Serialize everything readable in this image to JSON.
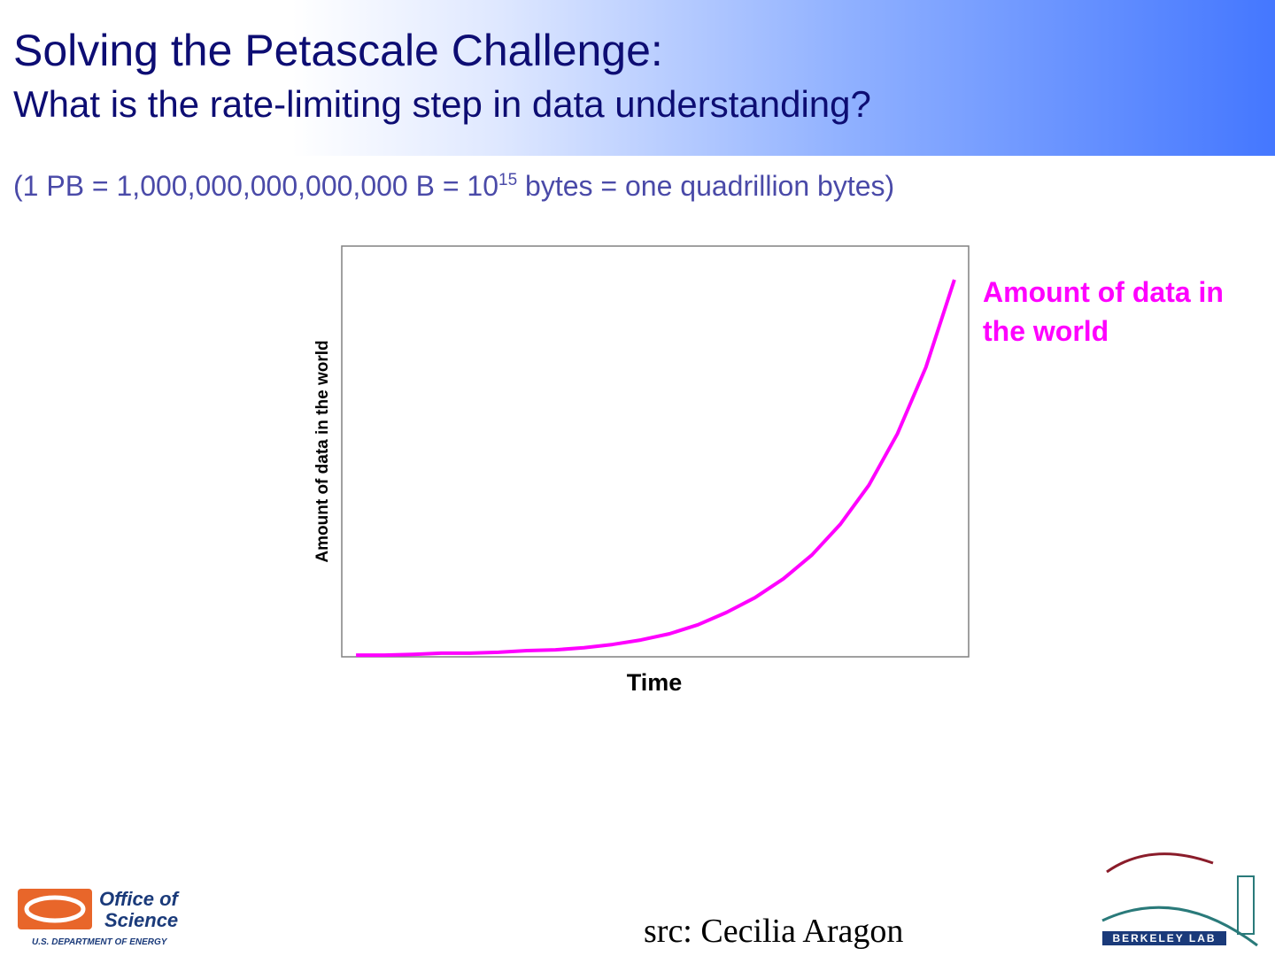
{
  "slide": {
    "title": "Solving the Petascale Challenge:",
    "subtitle": "What is the rate-limiting step in data understanding?",
    "note_before": "(1 PB = 1,000,000,000,000,000 B = 10",
    "note_exponent": "15",
    "note_after": " bytes = one quadrillion bytes)",
    "source": "src: Cecilia Aragon",
    "logo_left": {
      "line1": "Office of",
      "line2": "Science",
      "line3": "U.S. DEPARTMENT OF ENERGY"
    },
    "logo_right": "BERKELEY LAB"
  },
  "chart_data": {
    "type": "line",
    "x_label": "Time",
    "y_label": "Amount of data in the world",
    "categories": [
      null,
      null,
      null,
      null,
      null,
      null,
      null,
      null,
      null,
      null,
      null,
      null,
      null,
      null,
      null,
      null,
      null,
      null,
      null,
      null,
      null,
      null
    ],
    "series": [
      {
        "name": "Amount of data in the world",
        "color": "#ff00ff",
        "values": [
          0.4,
          0.4,
          0.6,
          0.9,
          0.9,
          1.1,
          1.5,
          1.7,
          2.2,
          3.0,
          4.1,
          5.6,
          7.8,
          10.8,
          14.4,
          19.0,
          24.8,
          32.3,
          41.8,
          54.3,
          70.5,
          91.8
        ]
      }
    ],
    "ylim": [
      0,
      100
    ]
  }
}
